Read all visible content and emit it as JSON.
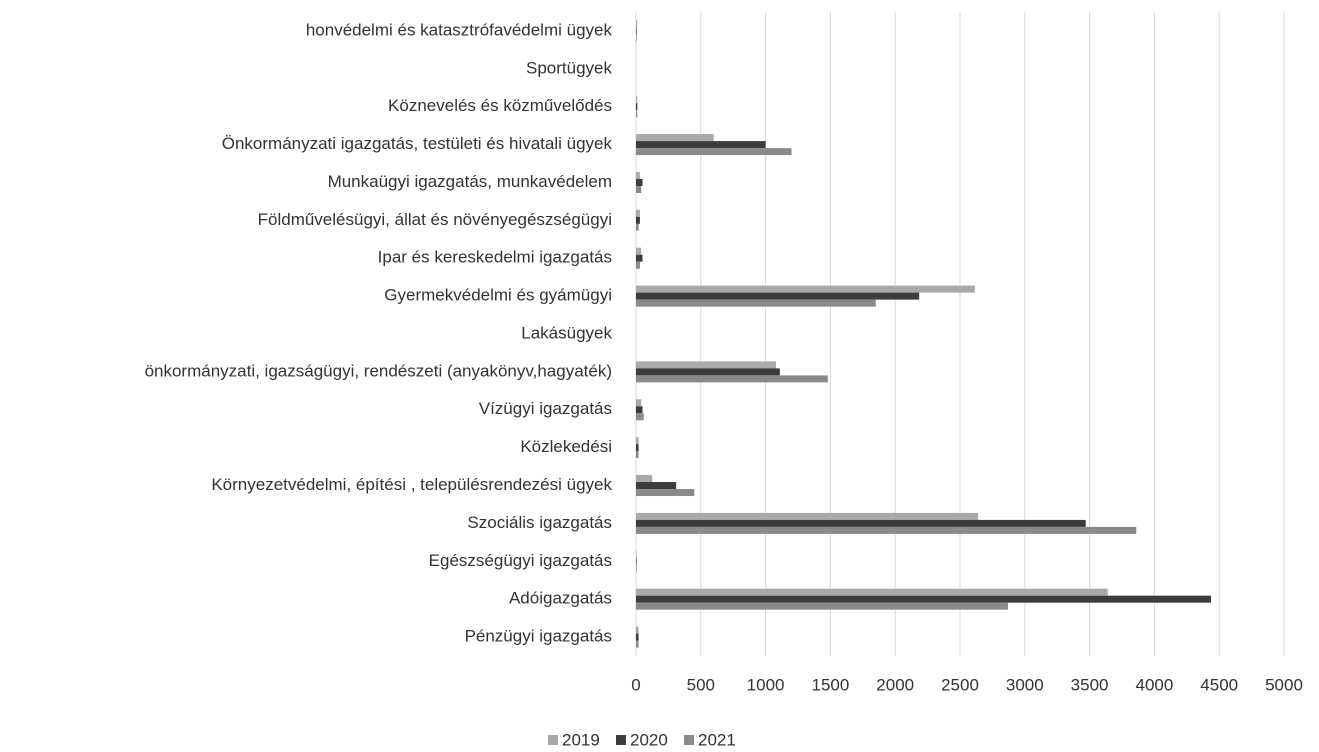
{
  "chart_data": {
    "type": "bar",
    "orientation": "horizontal",
    "categories": [
      "honvédelmi és katasztrófavédelmi ügyek",
      "Sportügyek",
      "Köznevelés és közművelődés",
      "Önkormányzati igazgatás, testületi és hivatali ügyek",
      "Munkaügyi igazgatás, munkavédelem",
      "Földművelésügyi, állat és növényegészségügyi",
      "Ipar és kereskedelmi igazgatás",
      "Gyermekvédelmi és gyámügyi",
      "Lakásügyek",
      "önkormányzati, igazságügyi, rendészeti (anyakönyv,hagyaték)",
      "Vízügyi igazgatás",
      "Közlekedési",
      "Környezetvédelmi, építési , településrendezési ügyek",
      "Szociális igazgatás",
      "Egészségügyi igazgatás",
      "Adóigazgatás",
      "Pénzügyi igazgatás"
    ],
    "series": [
      {
        "name": "2019",
        "color": "#a9a9a9",
        "values": [
          10,
          0,
          10,
          600,
          30,
          30,
          40,
          2615,
          0,
          1080,
          40,
          20,
          125,
          2640,
          5,
          3640,
          20
        ]
      },
      {
        "name": "2020",
        "color": "#3c3c3c",
        "values": [
          5,
          0,
          10,
          1000,
          50,
          30,
          50,
          2185,
          0,
          1110,
          50,
          20,
          310,
          3470,
          5,
          4437,
          20
        ]
      },
      {
        "name": "2021",
        "color": "#8a8a8a",
        "values": [
          5,
          0,
          10,
          1200,
          40,
          20,
          30,
          1850,
          0,
          1480,
          60,
          20,
          450,
          3860,
          5,
          2870,
          20
        ]
      }
    ],
    "xlim": [
      0,
      5000
    ],
    "xticks": [
      0,
      500,
      1000,
      1500,
      2000,
      2500,
      3000,
      3500,
      4000,
      4500,
      5000
    ],
    "grid": true,
    "legend": "bottom"
  }
}
